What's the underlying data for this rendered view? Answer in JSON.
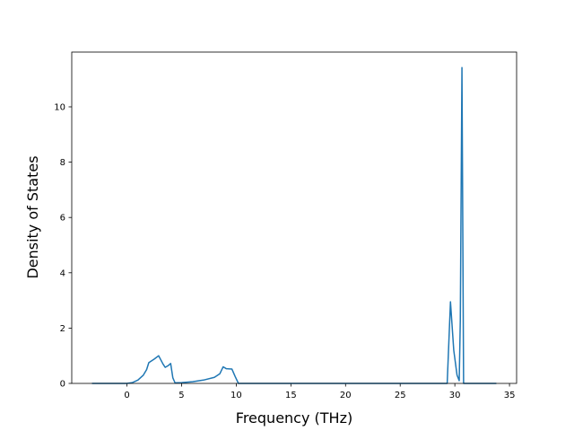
{
  "chart_data": {
    "type": "line",
    "xlabel": "Frequency (THz)",
    "ylabel": "Density of States",
    "color": "#1f77b4",
    "x": [
      -3.2,
      0,
      0.5,
      1,
      1.5,
      1.8,
      2,
      2.5,
      2.9,
      3.3,
      3.5,
      3.8,
      4,
      4.2,
      4.4,
      5,
      6,
      7,
      8,
      8.5,
      8.8,
      9.1,
      9.6,
      9.9,
      10.2,
      29.3,
      29.6,
      29.9,
      30.2,
      30.4,
      30.5,
      30.65,
      30.8,
      33.8
    ],
    "values": [
      0,
      0,
      0.03,
      0.12,
      0.3,
      0.5,
      0.75,
      0.88,
      1.0,
      0.7,
      0.58,
      0.65,
      0.72,
      0.2,
      0.02,
      0.03,
      0.06,
      0.12,
      0.22,
      0.35,
      0.6,
      0.53,
      0.52,
      0.25,
      0,
      0,
      2.95,
      1.2,
      0.3,
      0.1,
      2.3,
      11.42,
      0,
      0
    ],
    "xlim": [
      -5.05,
      35.65
    ],
    "ylim": [
      0,
      11.98
    ],
    "xticks": [
      0,
      5,
      10,
      15,
      20,
      25,
      30,
      35
    ],
    "yticks": [
      0,
      2,
      4,
      6,
      8,
      10
    ]
  }
}
